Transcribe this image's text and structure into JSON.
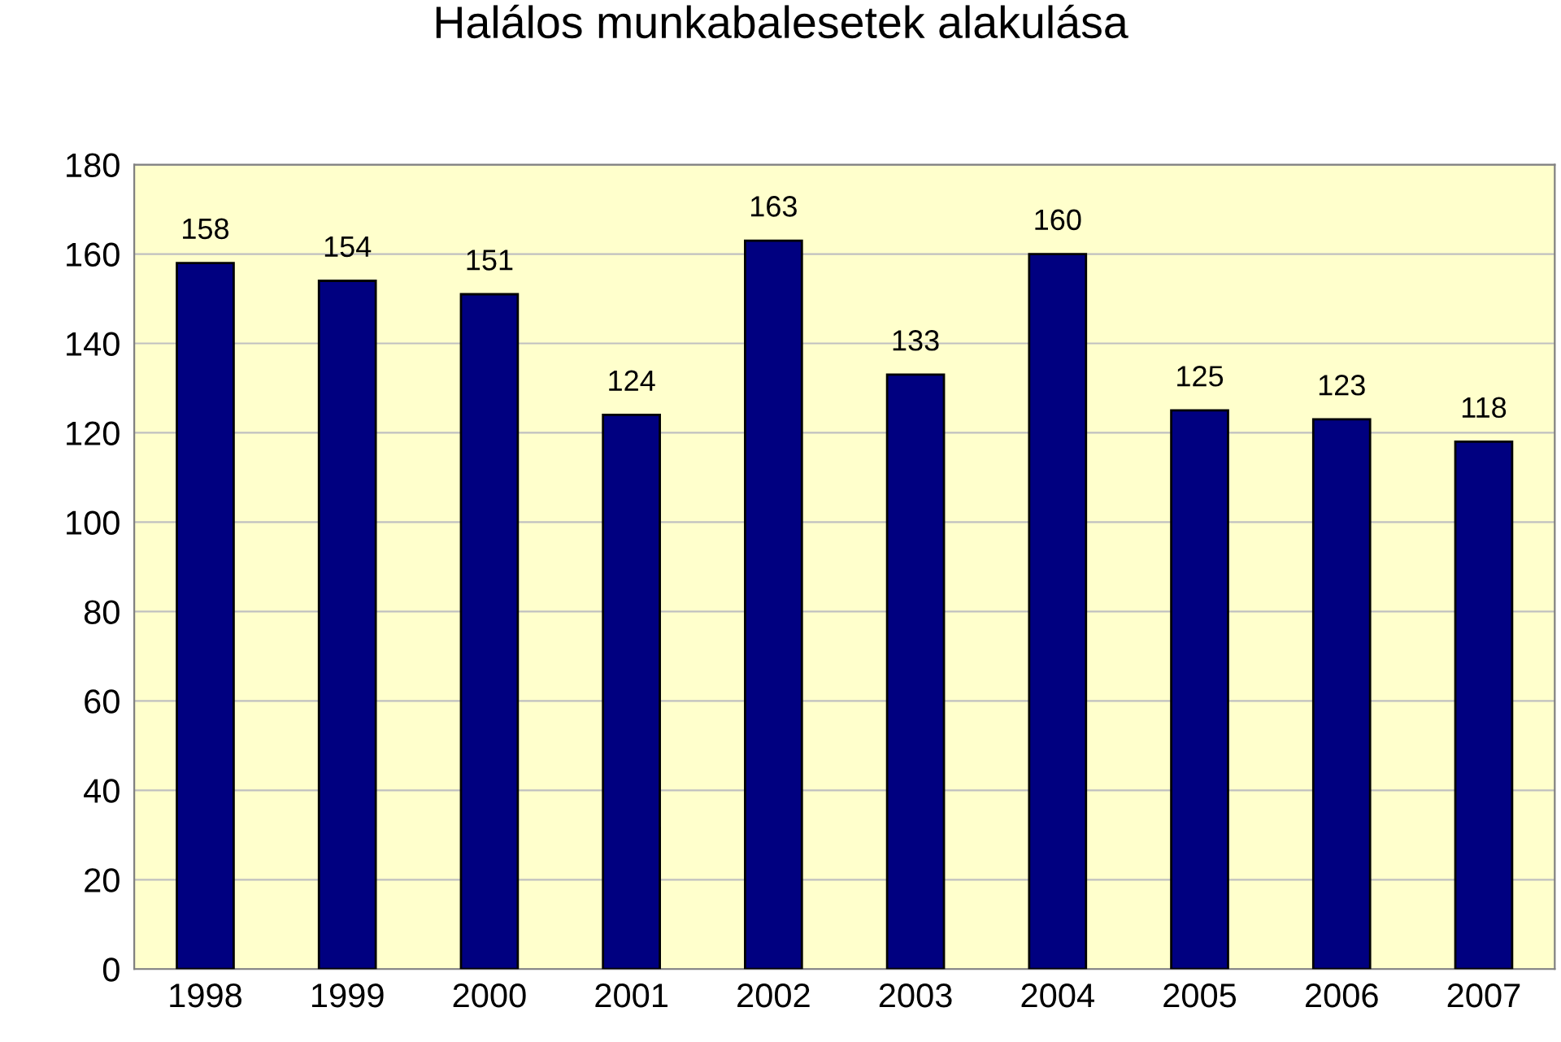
{
  "chart_data": {
    "type": "bar",
    "title": "Halálos munkabalesetek alakulása",
    "categories": [
      "1998",
      "1999",
      "2000",
      "2001",
      "2002",
      "2003",
      "2004",
      "2005",
      "2006",
      "2007"
    ],
    "values": [
      158,
      154,
      151,
      124,
      163,
      133,
      160,
      125,
      123,
      118
    ],
    "color": "#000080",
    "ylim": [
      0,
      180
    ],
    "yticks": [
      0,
      20,
      40,
      60,
      80,
      100,
      120,
      140,
      160,
      180
    ],
    "grid": "y",
    "data_labels": true
  }
}
